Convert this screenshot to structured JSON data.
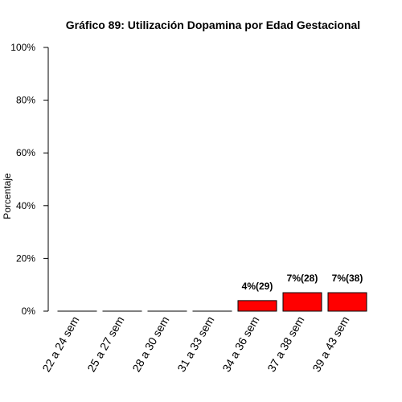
{
  "chart_data": {
    "type": "bar",
    "title": "Gráfico 89: Utilización Dopamina por  Edad Gestacional",
    "xlabel": "",
    "ylabel": "Porcentaje",
    "ylim": [
      0,
      100
    ],
    "y_ticks": [
      "0%",
      "20%",
      "40%",
      "60%",
      "80%",
      "100%"
    ],
    "categories": [
      "22 a 24 sem",
      "25 a 27 sem",
      "28 a 30 sem",
      "31 a 33 sem",
      "34 a 36 sem",
      "37 a 38 sem",
      "39 a 43 sem"
    ],
    "values": [
      0,
      0,
      0,
      0,
      4,
      7,
      7
    ],
    "data_labels": [
      "",
      "",
      "",
      "",
      "4%(29)",
      "7%(28)",
      "7%(38)"
    ],
    "bar_color": "#ff0000",
    "grid": false,
    "legend": "none"
  }
}
